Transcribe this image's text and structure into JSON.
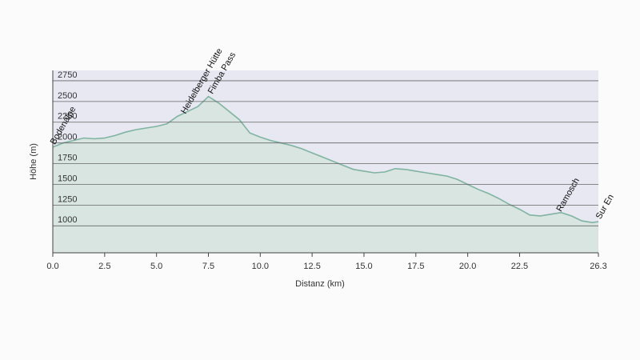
{
  "chart_data": {
    "type": "area",
    "xlabel": "Distanz (km)",
    "ylabel": "Höhe (m)",
    "x": [
      0,
      0.5,
      1.0,
      1.5,
      2.0,
      2.5,
      3.0,
      3.5,
      4.0,
      4.5,
      5.0,
      5.5,
      6.0,
      6.5,
      7.0,
      7.5,
      8.0,
      8.5,
      9.0,
      9.5,
      10.0,
      10.5,
      11.0,
      11.5,
      12.0,
      12.5,
      13.0,
      13.5,
      14.0,
      14.5,
      15.0,
      15.5,
      16.0,
      16.5,
      17.0,
      17.5,
      18.0,
      18.5,
      19.0,
      19.5,
      20.0,
      20.5,
      21.0,
      21.5,
      22.0,
      22.5,
      23.0,
      23.5,
      24.0,
      24.5,
      25.0,
      25.5,
      26.0,
      26.3
    ],
    "values": [
      1950,
      2000,
      2030,
      2060,
      2050,
      2060,
      2090,
      2130,
      2160,
      2180,
      2200,
      2230,
      2320,
      2380,
      2440,
      2560,
      2480,
      2380,
      2280,
      2120,
      2070,
      2030,
      2000,
      1970,
      1930,
      1880,
      1830,
      1780,
      1730,
      1680,
      1660,
      1640,
      1650,
      1690,
      1680,
      1660,
      1640,
      1620,
      1600,
      1560,
      1500,
      1440,
      1390,
      1330,
      1260,
      1200,
      1130,
      1120,
      1140,
      1160,
      1120,
      1060,
      1040,
      1050
    ],
    "color": "#7fb3a2",
    "fill": "#d9e5e0",
    "xlim": [
      0,
      26.3
    ],
    "ylim": [
      675,
      2875
    ],
    "xticks": [
      {
        "value": 0,
        "label": "0.0"
      },
      2.5,
      {
        "value": 5,
        "label": "5.0"
      },
      7.5,
      {
        "value": 10,
        "label": "10.0"
      },
      12.5,
      {
        "value": 15,
        "label": "15.0"
      },
      17.5,
      {
        "value": 20,
        "label": "20.0"
      },
      22.5,
      26.3
    ],
    "yticks": [
      1000,
      1250,
      1500,
      1750,
      2000,
      2250,
      2500,
      2750
    ],
    "grid": true,
    "annotations": [
      {
        "text": "Bodenalpe",
        "x": 0
      },
      {
        "text": "Heidelberger Hütte",
        "x": 6.3
      },
      {
        "text": "Fimba Pass",
        "x": 7.6
      },
      {
        "text": "Ramosch",
        "x": 24.4
      },
      {
        "text": "Sur En",
        "x": 26.3
      }
    ]
  }
}
